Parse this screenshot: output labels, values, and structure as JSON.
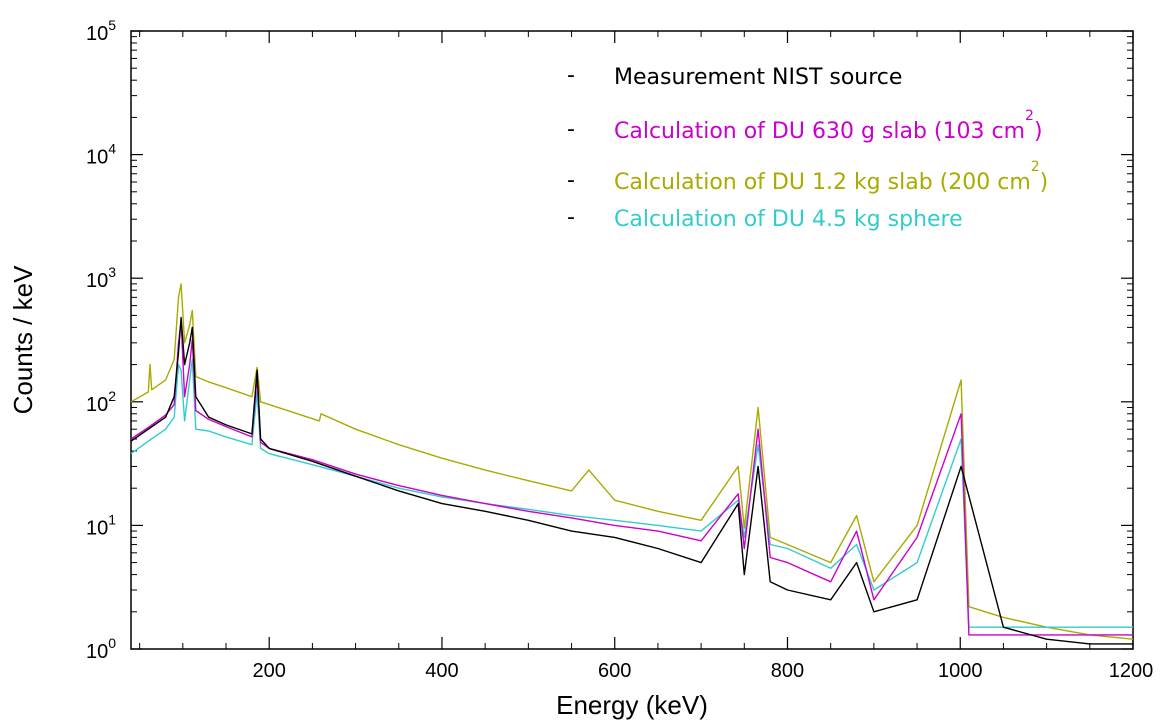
{
  "chart_data": {
    "type": "line",
    "xlabel": "Energy (keV)",
    "ylabel": "Counts / keV",
    "xlim": [
      40,
      1200
    ],
    "ylim": [
      1,
      100000
    ],
    "yscale": "log",
    "grid": false,
    "legend_position": "top-right",
    "x_ticks": [
      200,
      400,
      600,
      800,
      1000,
      1200
    ],
    "y_ticks": [
      {
        "base": "10",
        "exp": "0",
        "value": 1
      },
      {
        "base": "10",
        "exp": "1",
        "value": 10
      },
      {
        "base": "10",
        "exp": "2",
        "value": 100
      },
      {
        "base": "10",
        "exp": "3",
        "value": 1000
      },
      {
        "base": "10",
        "exp": "4",
        "value": 10000
      },
      {
        "base": "10",
        "exp": "5",
        "value": 100000
      }
    ],
    "series": [
      {
        "name": "Measurement NIST source",
        "legend_marker": "-",
        "color": "#000000",
        "x": [
          40,
          60,
          80,
          90,
          95,
          98,
          102,
          108,
          111,
          115,
          130,
          150,
          180,
          186,
          190,
          200,
          250,
          300,
          350,
          400,
          450,
          500,
          550,
          600,
          650,
          700,
          743,
          750,
          766,
          780,
          800,
          850,
          880,
          900,
          950,
          1001,
          1050,
          1100,
          1150,
          1200
        ],
        "y": [
          48,
          60,
          75,
          110,
          250,
          480,
          200,
          300,
          400,
          110,
          75,
          65,
          55,
          180,
          50,
          42,
          33,
          25,
          19,
          15,
          13,
          11,
          9,
          8,
          6.5,
          5,
          15,
          4,
          30,
          3.5,
          3,
          2.5,
          5,
          2,
          2.5,
          30,
          1.5,
          1.2,
          1.1,
          1.1
        ]
      },
      {
        "name": "Calculation of DU 630 g slab (103 cm",
        "name_sup": "2",
        "name_tail": ")",
        "legend_marker": "-",
        "color": "#cc00cc",
        "x": [
          40,
          60,
          80,
          90,
          95,
          98,
          102,
          108,
          111,
          115,
          130,
          150,
          180,
          186,
          190,
          200,
          250,
          300,
          350,
          400,
          450,
          500,
          550,
          600,
          650,
          700,
          743,
          750,
          766,
          780,
          800,
          850,
          880,
          900,
          950,
          1001,
          1010,
          1050,
          1100,
          1150,
          1200
        ],
        "y": [
          50,
          62,
          78,
          95,
          300,
          450,
          110,
          200,
          320,
          85,
          72,
          63,
          52,
          160,
          47,
          42,
          34,
          26,
          21,
          17.5,
          15,
          13,
          11.5,
          10,
          9,
          7.5,
          18,
          6.5,
          60,
          5.5,
          5,
          3.5,
          9,
          2.5,
          8,
          80,
          1.3,
          1.3,
          1.3,
          1.3,
          1.3
        ]
      },
      {
        "name": "Calculation of DU 1.2 kg slab (200 cm",
        "name_sup": "2",
        "name_tail": ")",
        "legend_marker": "-",
        "color": "#aaaa00",
        "x": [
          40,
          60,
          62,
          64,
          80,
          90,
          95,
          98,
          102,
          108,
          111,
          115,
          130,
          150,
          180,
          186,
          190,
          200,
          258,
          260,
          300,
          350,
          400,
          450,
          500,
          550,
          570,
          600,
          650,
          700,
          743,
          750,
          766,
          780,
          800,
          850,
          880,
          900,
          950,
          1001,
          1010,
          1050,
          1100,
          1150,
          1200
        ],
        "y": [
          100,
          120,
          200,
          125,
          150,
          220,
          700,
          900,
          300,
          420,
          550,
          160,
          145,
          130,
          110,
          190,
          100,
          95,
          70,
          80,
          60,
          45,
          35,
          28,
          23,
          19,
          28,
          16,
          13,
          11,
          30,
          9.5,
          90,
          8,
          7,
          5,
          12,
          3.5,
          10,
          150,
          2.2,
          1.8,
          1.5,
          1.3,
          1.2
        ]
      },
      {
        "name": "Calculation of DU 4.5 kg sphere",
        "legend_marker": "-",
        "color": "#33cccc",
        "x": [
          40,
          60,
          80,
          90,
          95,
          98,
          102,
          108,
          111,
          115,
          130,
          150,
          180,
          186,
          190,
          200,
          250,
          300,
          350,
          400,
          450,
          500,
          550,
          600,
          650,
          700,
          743,
          750,
          766,
          780,
          800,
          850,
          880,
          900,
          950,
          1001,
          1010,
          1050,
          1100,
          1150,
          1200
        ],
        "y": [
          38,
          48,
          60,
          75,
          200,
          180,
          70,
          150,
          220,
          60,
          58,
          52,
          45,
          120,
          42,
          38,
          31,
          25,
          20,
          17,
          15,
          13.5,
          12,
          11,
          10,
          9,
          16,
          8,
          45,
          7,
          6.5,
          4.5,
          7,
          3,
          5,
          50,
          1.5,
          1.5,
          1.5,
          1.5,
          1.5
        ]
      }
    ]
  }
}
